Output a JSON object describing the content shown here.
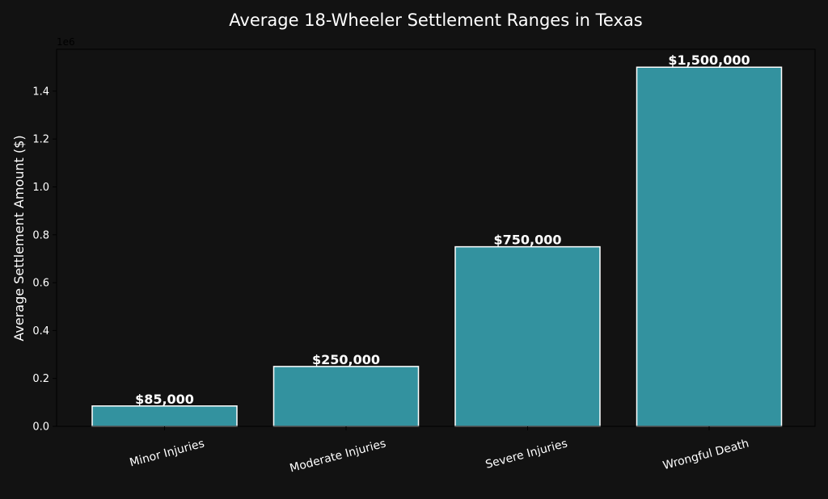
{
  "chart_data": {
    "type": "bar",
    "title": "Average 18-Wheeler Settlement Ranges in Texas",
    "xlabel": "",
    "ylabel": "Average Settlement Amount ($)",
    "y_offset_label": "1e6",
    "categories": [
      "Minor Injuries",
      "Moderate Injuries",
      "Severe Injuries",
      "Wrongful Death"
    ],
    "values": [
      85000,
      250000,
      750000,
      1500000
    ],
    "value_labels": [
      "$85,000",
      "$250,000",
      "$750,000",
      "$1,500,000"
    ],
    "ylim": [
      0,
      1575000
    ],
    "y_ticks": [
      0,
      200000,
      400000,
      600000,
      800000,
      1000000,
      1200000,
      1400000
    ],
    "y_tick_labels": [
      "0.0",
      "0.2",
      "0.4",
      "0.6",
      "0.8",
      "1.0",
      "1.2",
      "1.4"
    ],
    "grid": false,
    "colors": {
      "background": "#121212",
      "bar_fill": "#33929f",
      "bar_edge": "#ffffff",
      "text": "#ffffff",
      "axis": "#000000"
    }
  }
}
